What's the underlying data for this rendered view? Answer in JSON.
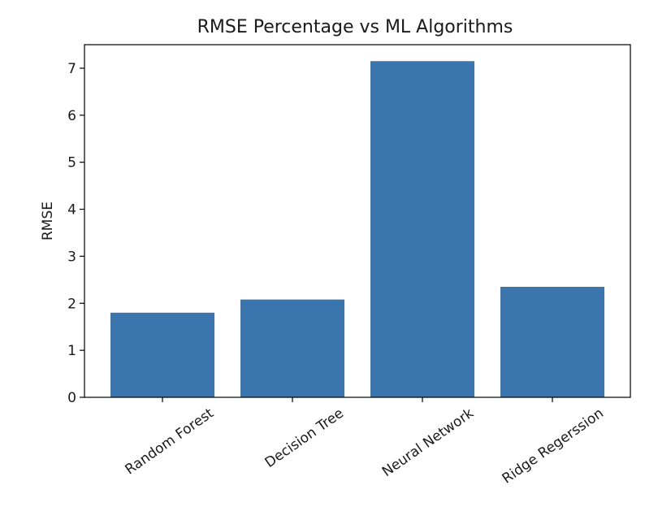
{
  "chart_data": {
    "type": "bar",
    "title": "RMSE Percentage vs ML Algorithms",
    "xlabel": "",
    "ylabel": "RMSE",
    "categories": [
      "Random Forest",
      "Decision Tree",
      "Neural Network",
      "Ridge Regerssion"
    ],
    "values": [
      1.8,
      2.08,
      7.15,
      2.35
    ],
    "ylim": [
      0,
      7.5
    ],
    "yticks": [
      0,
      1,
      2,
      3,
      4,
      5,
      6,
      7
    ],
    "grid": false,
    "legend": "none",
    "bar_color": "#3a75ad",
    "axis_color": "#000000"
  }
}
